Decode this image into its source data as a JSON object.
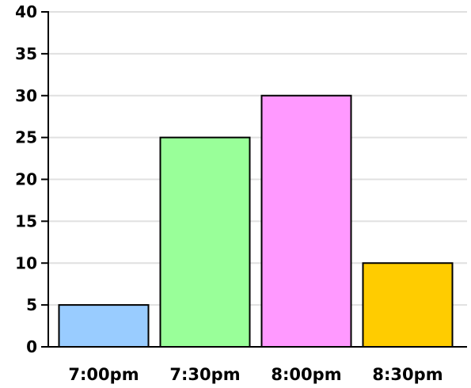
{
  "chart_data": {
    "type": "bar",
    "title": "",
    "xlabel": "",
    "ylabel": "",
    "categories": [
      "7:00pm",
      "7:30pm",
      "8:00pm",
      "8:30pm"
    ],
    "values": [
      5,
      25,
      30,
      10
    ],
    "bar_colors": [
      "#99ccff",
      "#99ff99",
      "#ff99ff",
      "#ffcc00"
    ],
    "ylim": [
      0,
      40
    ],
    "yticks": [
      "0",
      "5",
      "10",
      "15",
      "20",
      "25",
      "30",
      "35",
      "40"
    ],
    "grid": true,
    "grid_color": "#e0e0e0",
    "legend": "none"
  }
}
